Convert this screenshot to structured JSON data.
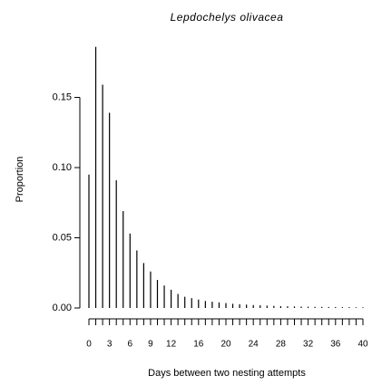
{
  "chart_data": {
    "type": "bar",
    "title": "Lepdochelys olivacea",
    "xlabel": "Days between two nesting attempts",
    "ylabel": "Proportion",
    "x": [
      0,
      1,
      2,
      3,
      4,
      5,
      6,
      7,
      8,
      9,
      10,
      11,
      12,
      13,
      14,
      15,
      16,
      17,
      18,
      19,
      20,
      21,
      22,
      23,
      24,
      25,
      26,
      27,
      28,
      29,
      30,
      31,
      32,
      33,
      34,
      35,
      36,
      37,
      38,
      39,
      40
    ],
    "values": [
      0.095,
      0.186,
      0.159,
      0.139,
      0.091,
      0.069,
      0.053,
      0.041,
      0.032,
      0.026,
      0.02,
      0.016,
      0.013,
      0.01,
      0.008,
      0.007,
      0.006,
      0.005,
      0.0045,
      0.004,
      0.0035,
      0.003,
      0.0027,
      0.0024,
      0.0021,
      0.0019,
      0.0017,
      0.0015,
      0.0013,
      0.0012,
      0.0011,
      0.001,
      0.0009,
      0.0008,
      0.0008,
      0.0007,
      0.0007,
      0.0006,
      0.0006,
      0.0005,
      0.0005
    ],
    "color": "#000000",
    "xlim": [
      0,
      40
    ],
    "ylim": [
      0,
      0.19
    ],
    "xticks": [
      0,
      1,
      2,
      3,
      4,
      5,
      6,
      7,
      8,
      9,
      10,
      11,
      12,
      13,
      14,
      15,
      16,
      17,
      18,
      19,
      20,
      21,
      22,
      23,
      24,
      25,
      26,
      27,
      28,
      29,
      30,
      31,
      32,
      33,
      34,
      35,
      36,
      37,
      38,
      39,
      40
    ],
    "xtick_labels": [
      0,
      3,
      6,
      9,
      12,
      16,
      20,
      24,
      28,
      32,
      36,
      40
    ],
    "yticks": [
      {
        "value": 0,
        "label": "0.00"
      },
      {
        "value": 0.05,
        "label": "0.05"
      },
      {
        "value": 0.1,
        "label": "0.10"
      },
      {
        "value": 0.15,
        "label": "0.15"
      }
    ]
  }
}
